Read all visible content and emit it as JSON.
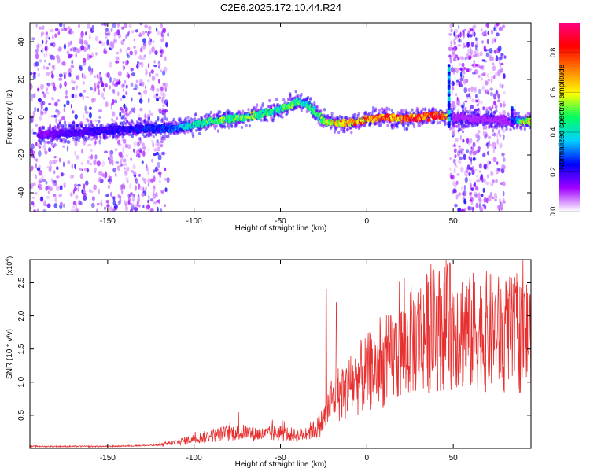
{
  "title": "C2E6.2025.172.10.44.R24",
  "chart_data": [
    {
      "type": "heatmap",
      "xlabel": "Height of straight line (km)",
      "ylabel": "Frequency (Hz)",
      "xlim": [
        -195,
        95
      ],
      "ylim": [
        -50,
        50
      ],
      "xticks": [
        -150,
        -100,
        -50,
        0,
        50
      ],
      "yticks": [
        -40,
        -20,
        0,
        20,
        40
      ],
      "colorbar": {
        "label": "Normalized spectral amplitude",
        "range": [
          0.0,
          0.95
        ],
        "ticks": [
          0.0,
          0.2,
          0.4,
          0.6,
          0.8
        ],
        "colors": [
          "#ffffff",
          "#a000ff",
          "#0000ff",
          "#00d0ff",
          "#00ff60",
          "#ffff00",
          "#ff8000",
          "#ff0000",
          "#ff0080"
        ]
      },
      "ridge": {
        "x": [
          -185,
          -170,
          -150,
          -130,
          -110,
          -100,
          -90,
          -80,
          -70,
          -60,
          -50,
          -45,
          -40,
          -35,
          -30,
          -25,
          -20,
          -10,
          0,
          10,
          20,
          30,
          40,
          47,
          50,
          85,
          90,
          95
        ],
        "y": [
          -9,
          -8,
          -7,
          -6,
          -6,
          -4,
          -2,
          -1,
          0,
          2,
          4,
          6,
          8,
          7,
          3,
          -2,
          -3,
          -3,
          -1,
          0,
          -1,
          0,
          1,
          0,
          0,
          -2,
          -2,
          -2
        ],
        "amplitude": [
          0.15,
          0.2,
          0.22,
          0.25,
          0.3,
          0.45,
          0.5,
          0.55,
          0.55,
          0.5,
          0.45,
          0.55,
          0.5,
          0.45,
          0.5,
          0.55,
          0.7,
          0.75,
          0.8,
          0.85,
          0.8,
          0.85,
          0.85,
          0.8,
          0.1,
          0.1,
          0.6,
          0.7
        ]
      },
      "noise_bands_x": [
        [
          -195,
          -115
        ],
        [
          48,
          80
        ]
      ]
    },
    {
      "type": "line",
      "xlabel": "Height of straight line (km)",
      "ylabel": "SNR (10 * v/v)",
      "y_scale_label": "(x10",
      "y_scale_exponent": "4",
      "y_scale_close": ")",
      "xlim": [
        -195,
        95
      ],
      "ylim": [
        0,
        2.85
      ],
      "xticks": [
        -150,
        -100,
        -50,
        0,
        50
      ],
      "yticks": [
        0.5,
        1.0,
        1.5,
        2.0,
        2.5
      ],
      "ytick_labels": [
        "0.5",
        "1.0",
        "1.5",
        "2.0",
        "2.5"
      ],
      "color": "#e83030",
      "envelope": {
        "x": [
          -195,
          -150,
          -120,
          -110,
          -100,
          -90,
          -80,
          -70,
          -60,
          -50,
          -40,
          -30,
          -25,
          -20,
          -10,
          0,
          10,
          20,
          30,
          40,
          50,
          60,
          70,
          80,
          95
        ],
        "y": [
          0.03,
          0.03,
          0.05,
          0.1,
          0.15,
          0.2,
          0.25,
          0.25,
          0.22,
          0.25,
          0.2,
          0.3,
          0.45,
          0.8,
          1.0,
          1.2,
          1.35,
          1.55,
          1.8,
          1.9,
          1.95,
          1.85,
          1.85,
          1.8,
          1.8
        ]
      },
      "peaks": [
        {
          "x": -23.5,
          "y": 2.4
        },
        {
          "x": -17.5,
          "y": 2.2
        },
        {
          "x": 48,
          "y": 2.8
        },
        {
          "x": 86,
          "y": 2.35
        }
      ]
    }
  ]
}
